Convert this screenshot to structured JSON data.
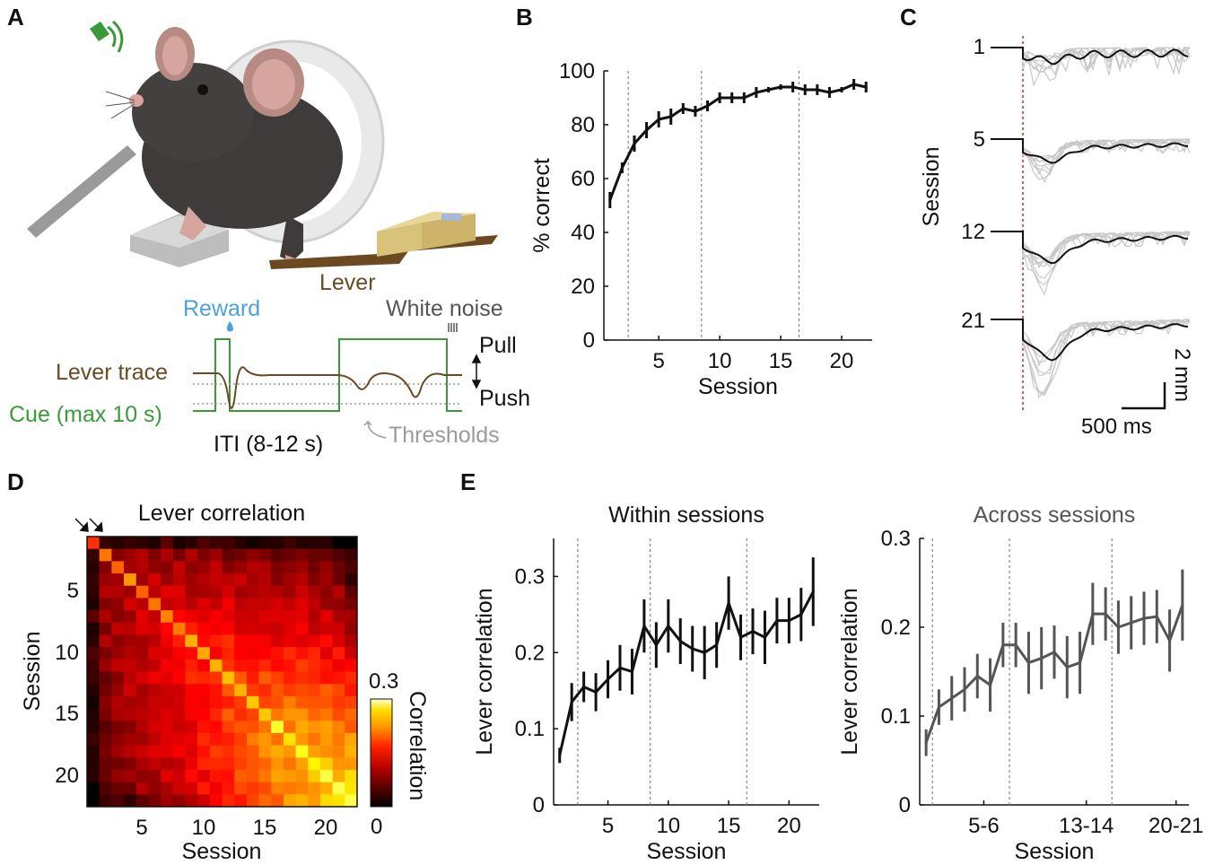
{
  "panels": {
    "A": {
      "label": "A",
      "lever_label": "Lever",
      "reward_label": "Reward",
      "white_noise_label": "White noise",
      "lever_trace_label": "Lever trace",
      "cue_label": "Cue (max 10 s)",
      "pull_label": "Pull",
      "push_label": "Push",
      "iti_label": "ITI (8-12 s)",
      "thresholds_label": "Thresholds",
      "colors": {
        "reward": "#4aa3df",
        "cue": "#3a9a3a",
        "lever": "#6b4a22",
        "thresholds": "#9a9a9a"
      }
    },
    "B": {
      "label": "B"
    },
    "C": {
      "label": "C",
      "ylabel": "Session",
      "sessions": [
        "1",
        "5",
        "12",
        "21"
      ],
      "scale_y": "2 mm",
      "scale_x": "500 ms"
    },
    "D": {
      "label": "D",
      "title": "Lever correlation",
      "xlabel": "Session",
      "ylabel": "Session",
      "xticks": [
        "5",
        "10",
        "15",
        "20"
      ],
      "yticks": [
        "5",
        "10",
        "15",
        "20"
      ],
      "colorbar_label": "Correlation",
      "colorbar_max": "0.3",
      "colorbar_min": "0"
    },
    "E": {
      "label": "E"
    }
  },
  "chart_data": [
    {
      "id": "B",
      "type": "line",
      "xlabel": "Session",
      "ylabel": "% correct",
      "xlim": [
        0.5,
        22.5
      ],
      "ylim": [
        0,
        100
      ],
      "xticks": [
        5,
        10,
        15,
        20
      ],
      "yticks": [
        0,
        20,
        40,
        60,
        80,
        100
      ],
      "vlines": [
        2.5,
        8.5,
        16.5
      ],
      "x": [
        1,
        2,
        3,
        4,
        5,
        6,
        7,
        8,
        9,
        10,
        11,
        12,
        13,
        14,
        15,
        16,
        17,
        18,
        19,
        20,
        21,
        22
      ],
      "y": [
        52,
        64,
        73,
        78,
        82,
        83,
        86,
        85,
        87,
        90,
        90,
        90,
        92,
        93,
        94,
        94,
        93,
        93,
        92,
        93,
        95,
        94
      ],
      "err": [
        3,
        2,
        3,
        3,
        3,
        3,
        2,
        2,
        2,
        2,
        2,
        2,
        2,
        1,
        1,
        2,
        2,
        2,
        2,
        1,
        2,
        2
      ]
    },
    {
      "id": "E-within",
      "type": "line",
      "title": "Within sessions",
      "xlabel": "Session",
      "ylabel": "Lever correlation",
      "xlim": [
        0.5,
        22.5
      ],
      "ylim": [
        0,
        0.35
      ],
      "xticks": [
        5,
        10,
        15,
        20
      ],
      "yticks": [
        0,
        0.1,
        0.2,
        0.3
      ],
      "vlines": [
        2.5,
        8.5,
        16.5
      ],
      "x": [
        1,
        2,
        3,
        4,
        5,
        6,
        7,
        8,
        9,
        10,
        11,
        12,
        13,
        14,
        15,
        16,
        17,
        18,
        19,
        20,
        21,
        22
      ],
      "y": [
        0.065,
        0.135,
        0.155,
        0.148,
        0.165,
        0.18,
        0.175,
        0.235,
        0.21,
        0.235,
        0.215,
        0.205,
        0.2,
        0.21,
        0.265,
        0.22,
        0.228,
        0.22,
        0.242,
        0.242,
        0.25,
        0.28
      ],
      "err": [
        0.01,
        0.025,
        0.02,
        0.025,
        0.025,
        0.03,
        0.03,
        0.035,
        0.03,
        0.035,
        0.03,
        0.03,
        0.035,
        0.03,
        0.035,
        0.03,
        0.03,
        0.035,
        0.03,
        0.03,
        0.035,
        0.045
      ]
    },
    {
      "id": "E-across",
      "type": "line",
      "title": "Across sessions",
      "xlabel": "Session",
      "ylabel": "Lever correlation",
      "xlim": [
        0.5,
        21.5
      ],
      "ylim": [
        0,
        0.3
      ],
      "xticks": [
        5.5,
        13.5,
        20.5
      ],
      "xticklabels": [
        "5-6",
        "13-14",
        "20-21"
      ],
      "yticks": [
        0,
        0.1,
        0.2,
        0.3
      ],
      "vlines": [
        1.5,
        7.5,
        15.5
      ],
      "x": [
        1,
        2,
        3,
        4,
        5,
        6,
        7,
        8,
        9,
        10,
        11,
        12,
        13,
        14,
        15,
        16,
        17,
        18,
        19,
        20,
        21
      ],
      "y": [
        0.07,
        0.11,
        0.12,
        0.13,
        0.145,
        0.135,
        0.18,
        0.18,
        0.16,
        0.165,
        0.172,
        0.155,
        0.16,
        0.215,
        0.215,
        0.2,
        0.205,
        0.21,
        0.212,
        0.185,
        0.225
      ],
      "err": [
        0.015,
        0.02,
        0.025,
        0.025,
        0.025,
        0.03,
        0.025,
        0.025,
        0.035,
        0.035,
        0.03,
        0.035,
        0.035,
        0.035,
        0.03,
        0.03,
        0.03,
        0.03,
        0.03,
        0.035,
        0.04
      ],
      "color": "#555555"
    },
    {
      "id": "D",
      "type": "heatmap",
      "n": 22,
      "vmin": 0,
      "vmax": 0.3,
      "cmap": "hot",
      "description_free": true
    }
  ]
}
